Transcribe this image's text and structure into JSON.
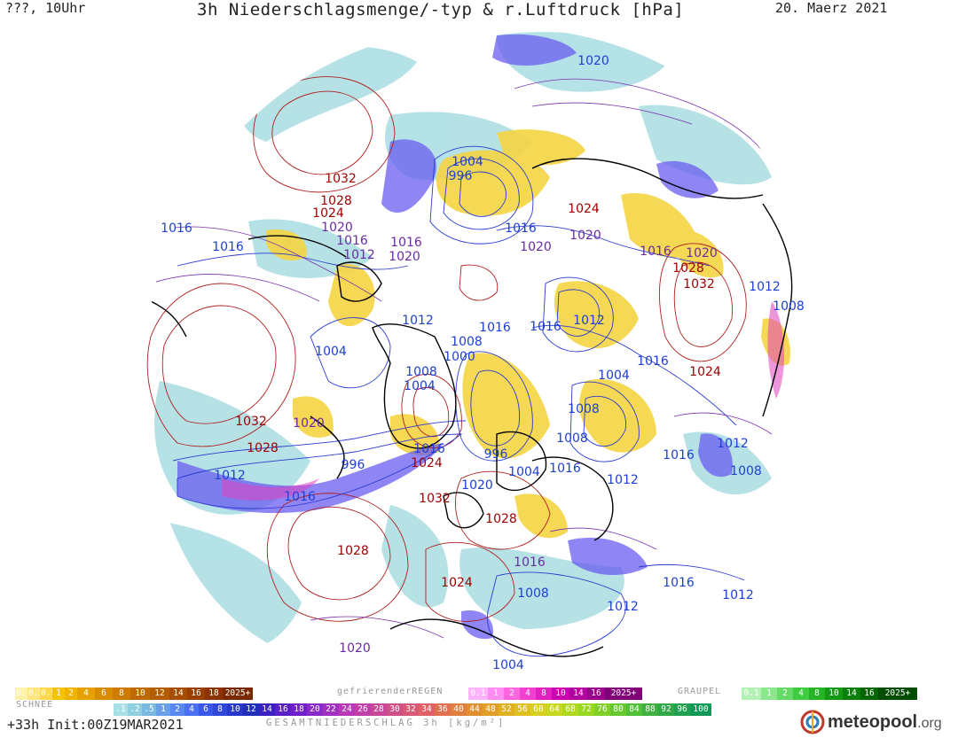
{
  "header": {
    "left": "???, 10Uhr",
    "title": "3h Niederschlagsmenge/-typ & r.Luftdruck [hPa]",
    "date": "20. Maerz 2021"
  },
  "colors": {
    "high_pressure": "#a00000",
    "low_pressure": "#1d3fd6",
    "mid_pressure": "#6a2aa6",
    "rain_yellow": "#f5d442",
    "snow_blue": "#6a5cf0",
    "light_precip": "#9fd9dd"
  },
  "isobar_labels": [
    {
      "text": "1020",
      "type": "low"
    },
    {
      "text": "1004",
      "type": "low"
    },
    {
      "text": "996",
      "type": "low"
    },
    {
      "text": "1032",
      "type": "high"
    },
    {
      "text": "1028",
      "type": "high"
    },
    {
      "text": "1024",
      "type": "high"
    },
    {
      "text": "1020",
      "type": "mid"
    },
    {
      "text": "1016",
      "type": "low"
    },
    {
      "text": "1016",
      "type": "low"
    },
    {
      "text": "1016",
      "type": "mid"
    },
    {
      "text": "1016",
      "type": "mid"
    },
    {
      "text": "1012",
      "type": "mid"
    },
    {
      "text": "1020",
      "type": "mid"
    },
    {
      "text": "1016",
      "type": "low"
    },
    {
      "text": "1020",
      "type": "mid"
    },
    {
      "text": "1024",
      "type": "high"
    },
    {
      "text": "1020",
      "type": "mid"
    },
    {
      "text": "1016",
      "type": "mid"
    },
    {
      "text": "1028",
      "type": "high"
    },
    {
      "text": "1020",
      "type": "mid"
    },
    {
      "text": "1032",
      "type": "high"
    },
    {
      "text": "1012",
      "type": "low"
    },
    {
      "text": "1008",
      "type": "low"
    },
    {
      "text": "1012",
      "type": "low"
    },
    {
      "text": "1004",
      "type": "low"
    },
    {
      "text": "1008",
      "type": "low"
    },
    {
      "text": "1016",
      "type": "low"
    },
    {
      "text": "1016",
      "type": "low"
    },
    {
      "text": "1012",
      "type": "low"
    },
    {
      "text": "1000",
      "type": "low"
    },
    {
      "text": "1008",
      "type": "low"
    },
    {
      "text": "1004",
      "type": "low"
    },
    {
      "text": "1016",
      "type": "low"
    },
    {
      "text": "1004",
      "type": "low"
    },
    {
      "text": "1024",
      "type": "high"
    },
    {
      "text": "1032",
      "type": "high"
    },
    {
      "text": "1028",
      "type": "high"
    },
    {
      "text": "1020",
      "type": "mid"
    },
    {
      "text": "996",
      "type": "low"
    },
    {
      "text": "1016",
      "type": "low"
    },
    {
      "text": "1012",
      "type": "low"
    },
    {
      "text": "1016",
      "type": "low"
    },
    {
      "text": "1024",
      "type": "high"
    },
    {
      "text": "996",
      "type": "low"
    },
    {
      "text": "1004",
      "type": "low"
    },
    {
      "text": "1016",
      "type": "low"
    },
    {
      "text": "1020",
      "type": "low"
    },
    {
      "text": "1032",
      "type": "high"
    },
    {
      "text": "1028",
      "type": "high"
    },
    {
      "text": "1012",
      "type": "low"
    },
    {
      "text": "1008",
      "type": "low"
    },
    {
      "text": "1008",
      "type": "low"
    },
    {
      "text": "1016",
      "type": "low"
    },
    {
      "text": "1012",
      "type": "low"
    },
    {
      "text": "1008",
      "type": "low"
    },
    {
      "text": "1028",
      "type": "high"
    },
    {
      "text": "1016",
      "type": "mid"
    },
    {
      "text": "1024",
      "type": "high"
    },
    {
      "text": "1008",
      "type": "low"
    },
    {
      "text": "1012",
      "type": "low"
    },
    {
      "text": "1016",
      "type": "low"
    },
    {
      "text": "1012",
      "type": "low"
    },
    {
      "text": "1020",
      "type": "mid"
    },
    {
      "text": "1004",
      "type": "low"
    }
  ],
  "legends": {
    "rain": {
      "values": [
        "0.1",
        "0.2",
        "0.5",
        "1",
        "2",
        "4",
        "6",
        "8",
        "10",
        "12",
        "14",
        "16",
        "18",
        "2025+"
      ],
      "colors": [
        "#fff2a6",
        "#ffe680",
        "#ffd84d",
        "#f5c400",
        "#f0b400",
        "#e6a000",
        "#d98c00",
        "#cc7a00",
        "#bf6a00",
        "#b35c00",
        "#a64d00",
        "#994000",
        "#8c3300",
        "#7a2800"
      ]
    },
    "freezing_rain": {
      "label": "gefrierenderREGEN",
      "values": [
        "0.1",
        "1",
        "2",
        "4",
        "8",
        "10",
        "14",
        "16",
        "2025+"
      ],
      "colors": [
        "#ffb3ff",
        "#ff8cf0",
        "#ff66e0",
        "#f240d0",
        "#e020c0",
        "#cc00b0",
        "#b300a0",
        "#99008c",
        "#800078"
      ]
    },
    "graupel": {
      "label": "GRAUPEL",
      "values": [
        "0.1",
        "1",
        "2",
        "4",
        "8",
        "10",
        "14",
        "16",
        "2025+"
      ],
      "colors": [
        "#b3f0b3",
        "#8ce68c",
        "#66d966",
        "#40cc40",
        "#26b326",
        "#139913",
        "#0a800a",
        "#066606",
        "#034d03"
      ]
    },
    "snow": {
      "label": "SCHNEE",
      "values": [
        ".1",
        ".2",
        ".5",
        "1",
        "2",
        "4",
        "6",
        "8",
        "10",
        "12",
        "14",
        "16",
        "18",
        "20",
        "22",
        "24",
        "26",
        "28",
        "30",
        "32",
        "34",
        "36",
        "40",
        "44",
        "48",
        "52",
        "56",
        "60",
        "64",
        "68",
        "72",
        "76",
        "80",
        "84",
        "88",
        "92",
        "96",
        "100"
      ],
      "colors": [
        "#a8e0e6",
        "#8fd0e0",
        "#7ab8e0",
        "#6aa0ea",
        "#5a88f0",
        "#4a70f0",
        "#3a58e8",
        "#3048d8",
        "#2838c8",
        "#2030b8",
        "#3a20c0",
        "#5a20c8",
        "#7020c8",
        "#8a2ac8",
        "#a030c0",
        "#b838b8",
        "#c040a8",
        "#c84898",
        "#d05088",
        "#d85878",
        "#e06068",
        "#e07050",
        "#e08040",
        "#e09030",
        "#e0a028",
        "#e0b020",
        "#e0c020",
        "#d8d020",
        "#c8d820",
        "#b0d820",
        "#98d820",
        "#80d028",
        "#68c830",
        "#50c038",
        "#40b040",
        "#30a848",
        "#20a050",
        "#109858"
      ]
    }
  },
  "footer": {
    "left": "+33h Init:00Z19MAR2021",
    "center": "GESAMTNIEDERSCHLAG 3h [kg/m²]"
  },
  "brand": {
    "name": "meteopool",
    "tld": ".org"
  }
}
